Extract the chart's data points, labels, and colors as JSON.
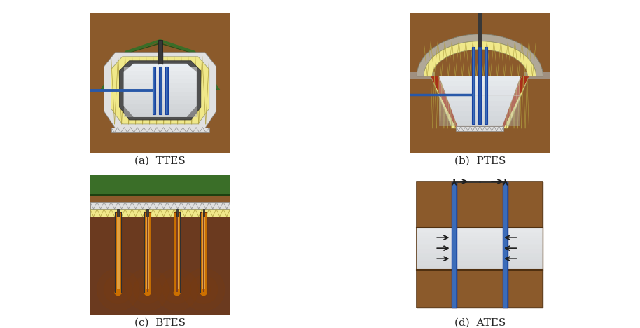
{
  "background": "#ffffff",
  "labels": [
    "(a)  TTES",
    "(b)  PTES",
    "(c)  BTES",
    "(d)  ATES"
  ],
  "label_fontsize": 11,
  "colors": {
    "soil": "#8B5A2B",
    "soil_dark": "#6B3A1F",
    "grass": "#3A6E28",
    "insulation_yellow": "#F0E88A",
    "insulation_white": "#E0E0E0",
    "water_light": "#E8EEF4",
    "water_grad_top": "#C8D8E8",
    "blue_pipe": "#2858A8",
    "blue_pipe_light": "#5080C8",
    "dark_pipe": "#383838",
    "red_liner": "#A83018",
    "orange_borehole": "#CC7000",
    "orange_inner": "#E0A040",
    "aquifer_white": "#E8EEF4",
    "brown_cap": "#7A4010",
    "concrete_gray": "#909090",
    "hatch_color": "#A09048"
  }
}
